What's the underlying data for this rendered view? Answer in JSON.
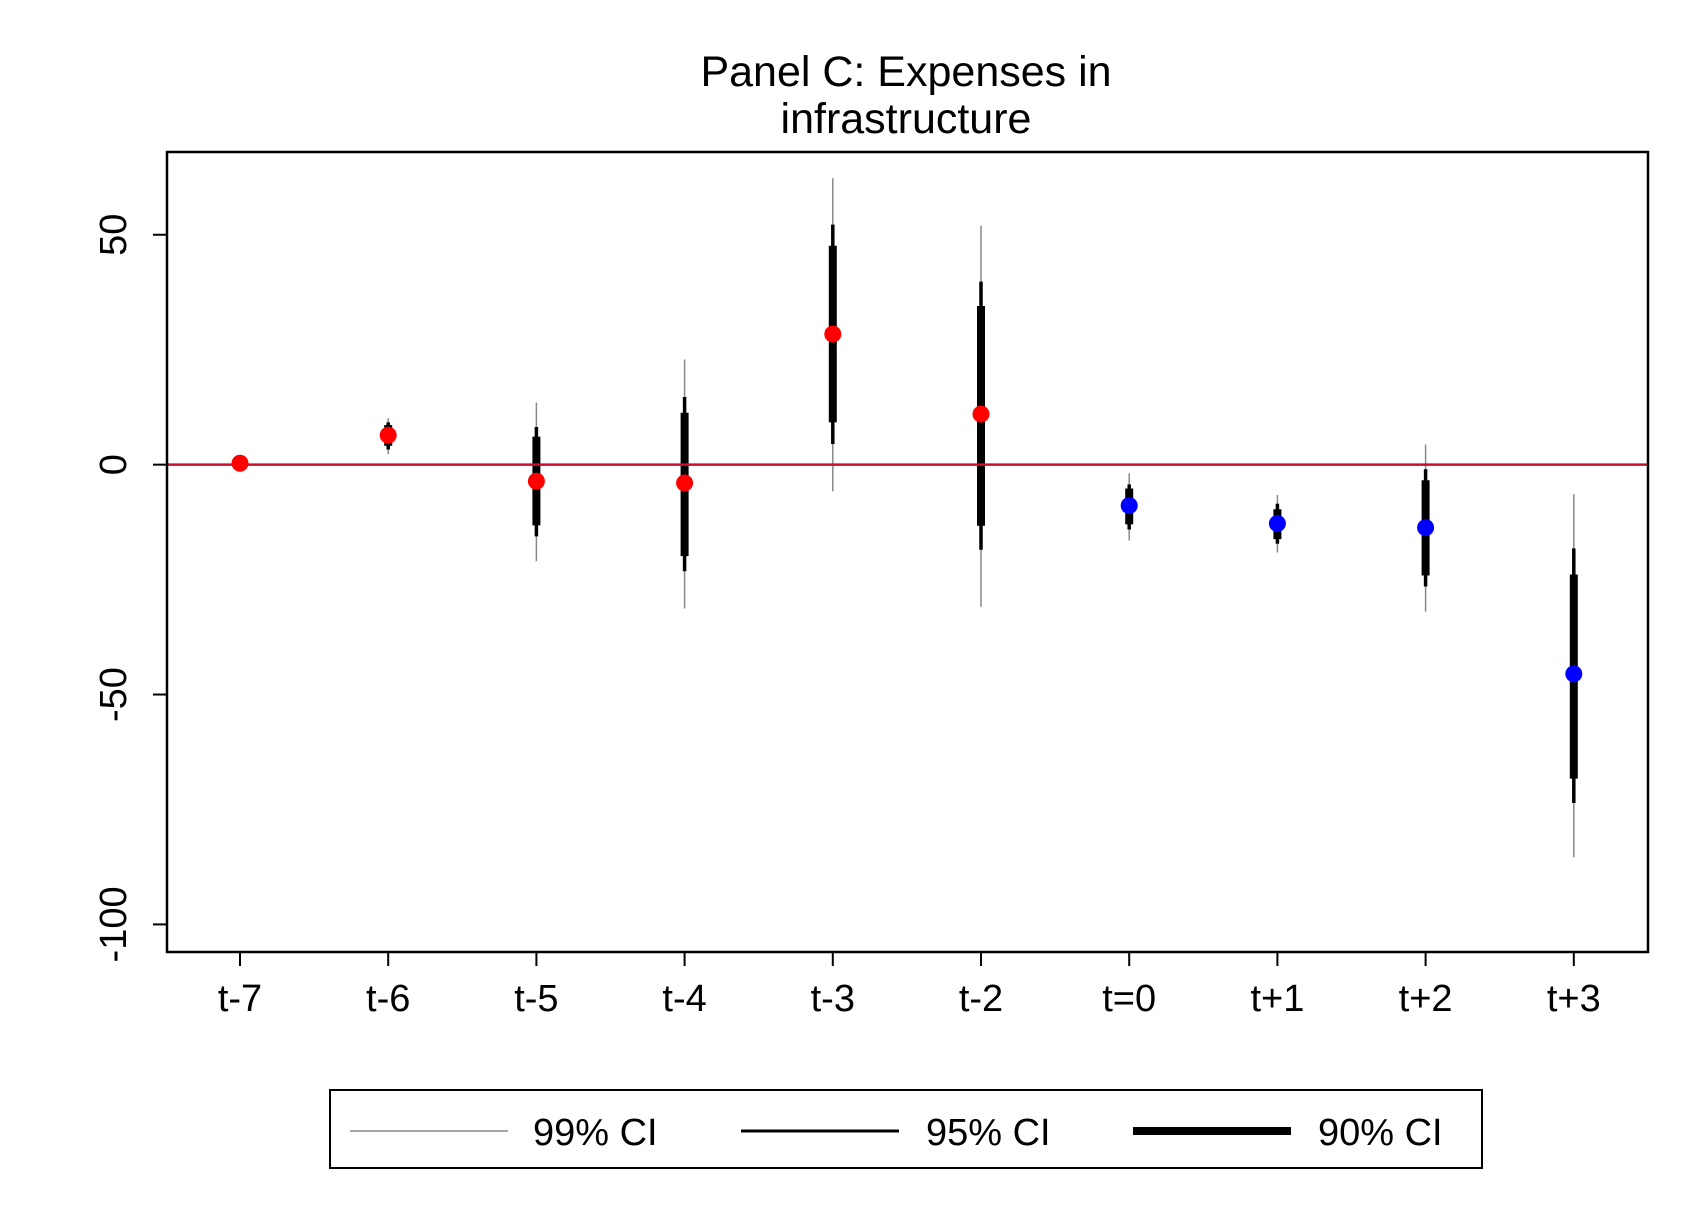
{
  "chart_data": {
    "type": "scatter",
    "title_lines": [
      "Panel C: Expenses in",
      "infrastructure"
    ],
    "xlabel": "",
    "ylabel": "",
    "categories": [
      "t-7",
      "t-6",
      "t-5",
      "t-4",
      "t-3",
      "t-2",
      "t=0",
      "t+1",
      "t+2",
      "t+3"
    ],
    "ylim": [
      -106,
      68
    ],
    "yticks": [
      {
        "value": 50,
        "label": "50"
      },
      {
        "value": 0,
        "label": "0"
      },
      {
        "value": -50,
        "label": "-50"
      },
      {
        "value": -100,
        "label": "-100"
      }
    ],
    "reference_line": {
      "y": 0,
      "color": "#c8102e"
    },
    "grid": false,
    "series": [
      {
        "category": "t-7",
        "estimate": 0.3,
        "color": "#ff0000",
        "ci99": [
          0.3,
          0.3
        ],
        "ci95": [
          0.3,
          0.3
        ],
        "ci90": [
          0.3,
          0.3
        ]
      },
      {
        "category": "t-6",
        "estimate": 6.4,
        "color": "#ff0000",
        "ci99": [
          2.3,
          10.1
        ],
        "ci95": [
          3.3,
          9.2
        ],
        "ci90": [
          4.1,
          8.6
        ]
      },
      {
        "category": "t-5",
        "estimate": -3.6,
        "color": "#ff0000",
        "ci99": [
          -21.0,
          13.5
        ],
        "ci95": [
          -15.6,
          8.2
        ],
        "ci90": [
          -13.2,
          6.1
        ]
      },
      {
        "category": "t-4",
        "estimate": -4.0,
        "color": "#ff0000",
        "ci99": [
          -31.3,
          22.9
        ],
        "ci95": [
          -23.2,
          14.7
        ],
        "ci90": [
          -19.9,
          11.3
        ]
      },
      {
        "category": "t-3",
        "estimate": 28.4,
        "color": "#ff0000",
        "ci99": [
          -5.8,
          62.3
        ],
        "ci95": [
          4.5,
          52.2
        ],
        "ci90": [
          9.2,
          47.6
        ]
      },
      {
        "category": "t-2",
        "estimate": 11.0,
        "color": "#ff0000",
        "ci99": [
          -30.9,
          52.0
        ],
        "ci95": [
          -18.5,
          39.8
        ],
        "ci90": [
          -13.3,
          34.5
        ]
      },
      {
        "category": "t=0",
        "estimate": -8.9,
        "color": "#0000ff",
        "ci99": [
          -16.5,
          -1.9
        ],
        "ci95": [
          -14.1,
          -4.3
        ],
        "ci90": [
          -13.0,
          -5.2
        ]
      },
      {
        "category": "t+1",
        "estimate": -12.8,
        "color": "#0000ff",
        "ci99": [
          -19.1,
          -6.6
        ],
        "ci95": [
          -17.2,
          -8.5
        ],
        "ci90": [
          -16.2,
          -9.7
        ]
      },
      {
        "category": "t+2",
        "estimate": -13.7,
        "color": "#0000ff",
        "ci99": [
          -32.0,
          4.4
        ],
        "ci95": [
          -26.5,
          -1.0
        ],
        "ci90": [
          -24.1,
          -3.4
        ]
      },
      {
        "category": "t+3",
        "estimate": -45.5,
        "color": "#0000ff",
        "ci99": [
          -85.4,
          -6.4
        ],
        "ci95": [
          -73.6,
          -18.2
        ],
        "ci90": [
          -68.3,
          -23.9
        ]
      }
    ],
    "legend": {
      "position": "bottom",
      "entries": [
        {
          "label": "99% CI",
          "style": "thin"
        },
        {
          "label": "95% CI",
          "style": "medium"
        },
        {
          "label": "90% CI",
          "style": "thick"
        }
      ]
    }
  }
}
